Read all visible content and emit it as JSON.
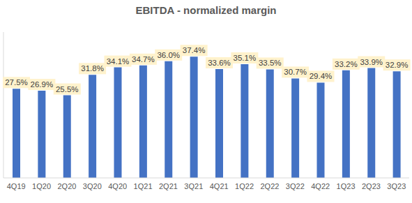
{
  "chart_data": {
    "type": "bar",
    "title": "EBITDA - normalized margin",
    "categories": [
      "4Q19",
      "1Q20",
      "2Q20",
      "3Q20",
      "4Q20",
      "1Q21",
      "2Q21",
      "3Q21",
      "4Q21",
      "1Q22",
      "2Q22",
      "3Q22",
      "4Q22",
      "1Q23",
      "2Q23",
      "3Q23"
    ],
    "values": [
      27.5,
      26.9,
      25.5,
      31.8,
      34.1,
      34.7,
      36.0,
      37.4,
      33.6,
      35.1,
      33.5,
      30.7,
      29.4,
      33.2,
      33.9,
      32.9
    ],
    "value_labels": [
      "27.5%",
      "26.9%",
      "25.5%",
      "31.8%",
      "34.1%",
      "34.7%",
      "36.0%",
      "37.4%",
      "33.6%",
      "35.1%",
      "33.5%",
      "30.7%",
      "29.4%",
      "33.2%",
      "33.9%",
      "32.9%"
    ],
    "color": "#4472c4",
    "ylim": [
      0,
      45
    ],
    "data_labels": true,
    "tick_labels": "x",
    "grid": false
  }
}
